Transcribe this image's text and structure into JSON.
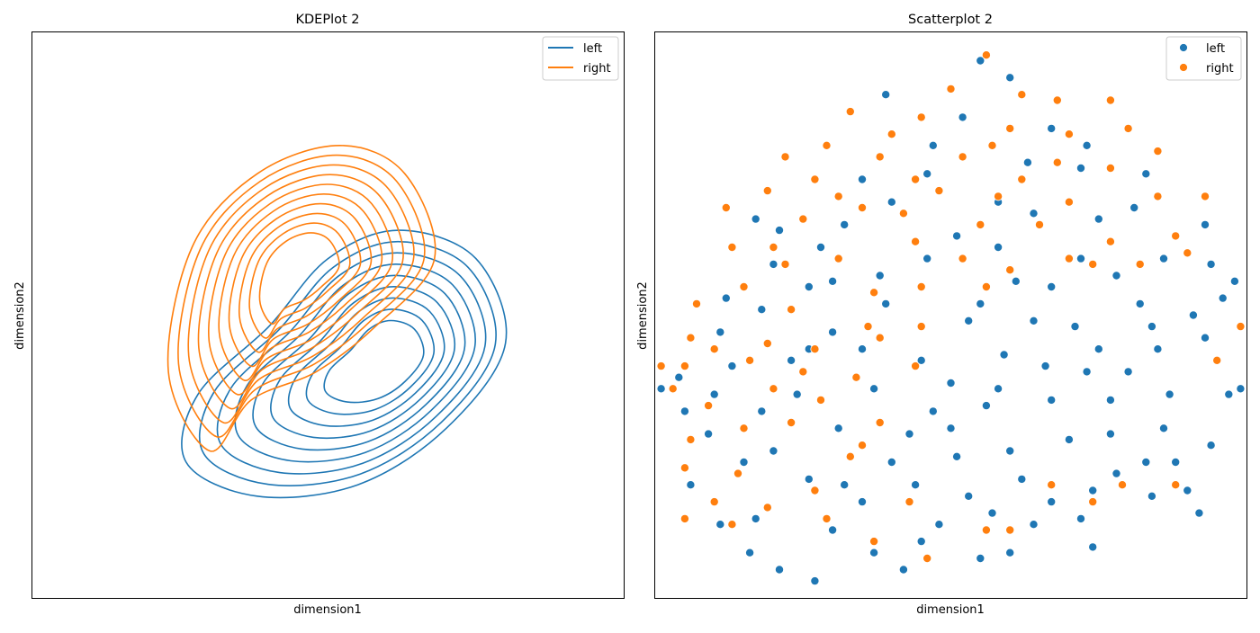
{
  "colors": {
    "left": "#1f77b4",
    "right": "#ff7f0e",
    "axes": "#000000",
    "background": "#ffffff",
    "marker_edge": "#ffffff"
  },
  "chart_data": [
    {
      "type": "kde-contour",
      "title": "KDEPlot 2",
      "xlabel": "dimension1",
      "ylabel": "dimension2",
      "xticks_shown": false,
      "yticks_shown": false,
      "grid": false,
      "legend": {
        "placement": "top-right",
        "entries": [
          "left",
          "right"
        ]
      },
      "series": [
        {
          "name": "left",
          "color": "#1f77b4",
          "center": [
            0.6,
            0.42
          ],
          "outer_contour": [
            [
              0.38,
              0.18
            ],
            [
              0.55,
              0.2
            ],
            [
              0.7,
              0.3
            ],
            [
              0.8,
              0.45
            ],
            [
              0.75,
              0.6
            ],
            [
              0.62,
              0.65
            ],
            [
              0.5,
              0.6
            ],
            [
              0.4,
              0.48
            ],
            [
              0.28,
              0.36
            ],
            [
              0.26,
              0.24
            ]
          ],
          "levels": 9
        },
        {
          "name": "right",
          "color": "#ff7f0e",
          "center": [
            0.45,
            0.58
          ],
          "outer_contour": [
            [
              0.3,
              0.26
            ],
            [
              0.37,
              0.35
            ],
            [
              0.48,
              0.4
            ],
            [
              0.58,
              0.48
            ],
            [
              0.68,
              0.6
            ],
            [
              0.63,
              0.75
            ],
            [
              0.52,
              0.8
            ],
            [
              0.38,
              0.75
            ],
            [
              0.27,
              0.62
            ],
            [
              0.23,
              0.4
            ]
          ],
          "levels": 10
        }
      ]
    },
    {
      "type": "scatter",
      "title": "Scatterplot 2",
      "xlabel": "dimension1",
      "ylabel": "dimension2",
      "xticks_shown": false,
      "yticks_shown": false,
      "grid": false,
      "legend": {
        "placement": "top-right",
        "entries": [
          "left",
          "right"
        ]
      },
      "series": [
        {
          "name": "left",
          "color": "#1f77b4",
          "points": [
            [
              0.55,
              0.95
            ],
            [
              0.6,
              0.92
            ],
            [
              0.39,
              0.89
            ],
            [
              0.52,
              0.85
            ],
            [
              0.67,
              0.83
            ],
            [
              0.73,
              0.8
            ],
            [
              0.47,
              0.8
            ],
            [
              0.63,
              0.77
            ],
            [
              0.46,
              0.75
            ],
            [
              0.35,
              0.74
            ],
            [
              0.72,
              0.76
            ],
            [
              0.58,
              0.7
            ],
            [
              0.4,
              0.7
            ],
            [
              0.83,
              0.75
            ],
            [
              0.75,
              0.67
            ],
            [
              0.64,
              0.68
            ],
            [
              0.32,
              0.66
            ],
            [
              0.51,
              0.64
            ],
            [
              0.21,
              0.65
            ],
            [
              0.81,
              0.69
            ],
            [
              0.9,
              0.61
            ],
            [
              0.72,
              0.6
            ],
            [
              0.28,
              0.62
            ],
            [
              0.17,
              0.67
            ],
            [
              0.26,
              0.55
            ],
            [
              0.38,
              0.57
            ],
            [
              0.46,
              0.6
            ],
            [
              0.58,
              0.62
            ],
            [
              0.78,
              0.57
            ],
            [
              0.86,
              0.6
            ],
            [
              0.94,
              0.59
            ],
            [
              0.96,
              0.53
            ],
            [
              0.82,
              0.52
            ],
            [
              0.91,
              0.5
            ],
            [
              0.71,
              0.48
            ],
            [
              0.53,
              0.49
            ],
            [
              0.64,
              0.49
            ],
            [
              0.3,
              0.47
            ],
            [
              0.18,
              0.51
            ],
            [
              0.35,
              0.44
            ],
            [
              0.45,
              0.42
            ],
            [
              0.59,
              0.43
            ],
            [
              0.75,
              0.44
            ],
            [
              0.85,
              0.44
            ],
            [
              0.93,
              0.46
            ],
            [
              0.11,
              0.47
            ],
            [
              0.13,
              0.41
            ],
            [
              0.66,
              0.41
            ],
            [
              0.5,
              0.38
            ],
            [
              0.37,
              0.37
            ],
            [
              0.24,
              0.36
            ],
            [
              0.67,
              0.35
            ],
            [
              0.8,
              0.4
            ],
            [
              0.56,
              0.34
            ],
            [
              0.7,
              0.28
            ],
            [
              0.43,
              0.29
            ],
            [
              0.31,
              0.3
            ],
            [
              0.87,
              0.36
            ],
            [
              0.18,
              0.33
            ],
            [
              0.09,
              0.29
            ],
            [
              0.05,
              0.33
            ],
            [
              0.2,
              0.26
            ],
            [
              0.6,
              0.26
            ],
            [
              0.77,
              0.29
            ],
            [
              0.94,
              0.27
            ],
            [
              0.83,
              0.24
            ],
            [
              0.51,
              0.25
            ],
            [
              0.4,
              0.24
            ],
            [
              0.15,
              0.24
            ],
            [
              0.26,
              0.21
            ],
            [
              0.62,
              0.21
            ],
            [
              0.74,
              0.19
            ],
            [
              0.9,
              0.19
            ],
            [
              0.06,
              0.2
            ],
            [
              0.44,
              0.2
            ],
            [
              0.35,
              0.17
            ],
            [
              0.57,
              0.15
            ],
            [
              0.72,
              0.14
            ],
            [
              0.17,
              0.14
            ],
            [
              0.48,
              0.13
            ],
            [
              0.3,
              0.12
            ],
            [
              0.92,
              0.15
            ],
            [
              0.37,
              0.08
            ],
            [
              0.55,
              0.07
            ],
            [
              0.21,
              0.05
            ],
            [
              0.11,
              0.13
            ],
            [
              0.84,
              0.18
            ],
            [
              0.67,
              0.17
            ],
            [
              0.97,
              0.36
            ],
            [
              0.04,
              0.39
            ],
            [
              0.1,
              0.36
            ],
            [
              0.23,
              0.42
            ],
            [
              0.47,
              0.33
            ],
            [
              0.58,
              0.37
            ],
            [
              0.77,
              0.35
            ],
            [
              0.01,
              0.37
            ],
            [
              0.88,
              0.24
            ],
            [
              0.32,
              0.2
            ],
            [
              0.64,
              0.13
            ],
            [
              0.45,
              0.1
            ],
            [
              0.53,
              0.18
            ],
            [
              0.78,
              0.22
            ],
            [
              0.6,
              0.08
            ],
            [
              0.42,
              0.05
            ],
            [
              0.74,
              0.09
            ],
            [
              0.27,
              0.03
            ],
            [
              0.16,
              0.08
            ],
            [
              0.86,
              0.3
            ],
            [
              0.99,
              0.37
            ],
            [
              0.93,
              0.66
            ],
            [
              0.67,
              0.55
            ],
            [
              0.55,
              0.52
            ],
            [
              0.2,
              0.59
            ],
            [
              0.39,
              0.52
            ],
            [
              0.26,
              0.44
            ],
            [
              0.5,
              0.3
            ],
            [
              0.73,
              0.4
            ],
            [
              0.84,
              0.48
            ],
            [
              0.98,
              0.56
            ],
            [
              0.12,
              0.53
            ],
            [
              0.3,
              0.56
            ],
            [
              0.61,
              0.56
            ]
          ]
        },
        {
          "name": "right",
          "color": "#ff7f0e",
          "points": [
            [
              0.56,
              0.96
            ],
            [
              0.5,
              0.9
            ],
            [
              0.62,
              0.89
            ],
            [
              0.45,
              0.85
            ],
            [
              0.68,
              0.88
            ],
            [
              0.7,
              0.82
            ],
            [
              0.4,
              0.82
            ],
            [
              0.33,
              0.86
            ],
            [
              0.29,
              0.8
            ],
            [
              0.22,
              0.78
            ],
            [
              0.52,
              0.78
            ],
            [
              0.62,
              0.74
            ],
            [
              0.77,
              0.76
            ],
            [
              0.8,
              0.83
            ],
            [
              0.38,
              0.78
            ],
            [
              0.27,
              0.74
            ],
            [
              0.19,
              0.72
            ],
            [
              0.12,
              0.69
            ],
            [
              0.48,
              0.72
            ],
            [
              0.58,
              0.71
            ],
            [
              0.7,
              0.7
            ],
            [
              0.85,
              0.71
            ],
            [
              0.35,
              0.69
            ],
            [
              0.42,
              0.68
            ],
            [
              0.55,
              0.66
            ],
            [
              0.65,
              0.66
            ],
            [
              0.77,
              0.63
            ],
            [
              0.88,
              0.64
            ],
            [
              0.13,
              0.62
            ],
            [
              0.22,
              0.59
            ],
            [
              0.31,
              0.6
            ],
            [
              0.44,
              0.63
            ],
            [
              0.52,
              0.6
            ],
            [
              0.6,
              0.58
            ],
            [
              0.7,
              0.6
            ],
            [
              0.82,
              0.59
            ],
            [
              0.07,
              0.52
            ],
            [
              0.15,
              0.55
            ],
            [
              0.23,
              0.51
            ],
            [
              0.37,
              0.54
            ],
            [
              0.45,
              0.55
            ],
            [
              0.56,
              0.55
            ],
            [
              0.06,
              0.46
            ],
            [
              0.1,
              0.44
            ],
            [
              0.19,
              0.45
            ],
            [
              0.27,
              0.44
            ],
            [
              0.36,
              0.48
            ],
            [
              0.45,
              0.48
            ],
            [
              0.05,
              0.41
            ],
            [
              0.16,
              0.42
            ],
            [
              0.25,
              0.4
            ],
            [
              0.34,
              0.39
            ],
            [
              0.44,
              0.41
            ],
            [
              0.03,
              0.37
            ],
            [
              0.09,
              0.34
            ],
            [
              0.2,
              0.37
            ],
            [
              0.28,
              0.35
            ],
            [
              0.38,
              0.31
            ],
            [
              0.06,
              0.28
            ],
            [
              0.15,
              0.3
            ],
            [
              0.23,
              0.31
            ],
            [
              0.35,
              0.27
            ],
            [
              0.05,
              0.23
            ],
            [
              0.14,
              0.22
            ],
            [
              0.27,
              0.19
            ],
            [
              0.33,
              0.25
            ],
            [
              0.1,
              0.17
            ],
            [
              0.19,
              0.16
            ],
            [
              0.29,
              0.14
            ],
            [
              0.05,
              0.14
            ],
            [
              0.13,
              0.13
            ],
            [
              0.43,
              0.17
            ],
            [
              0.56,
              0.12
            ],
            [
              0.67,
              0.2
            ],
            [
              0.37,
              0.1
            ],
            [
              0.46,
              0.07
            ],
            [
              0.6,
              0.12
            ],
            [
              0.74,
              0.17
            ],
            [
              0.79,
              0.2
            ],
            [
              0.88,
              0.2
            ],
            [
              0.95,
              0.42
            ],
            [
              0.99,
              0.48
            ],
            [
              0.93,
              0.71
            ],
            [
              0.85,
              0.79
            ],
            [
              0.68,
              0.77
            ],
            [
              0.6,
              0.83
            ],
            [
              0.77,
              0.88
            ],
            [
              0.57,
              0.8
            ],
            [
              0.01,
              0.41
            ],
            [
              0.38,
              0.46
            ],
            [
              0.25,
              0.67
            ],
            [
              0.31,
              0.71
            ],
            [
              0.44,
              0.74
            ],
            [
              0.2,
              0.62
            ],
            [
              0.9,
              0.61
            ],
            [
              0.74,
              0.59
            ]
          ]
        }
      ]
    }
  ]
}
